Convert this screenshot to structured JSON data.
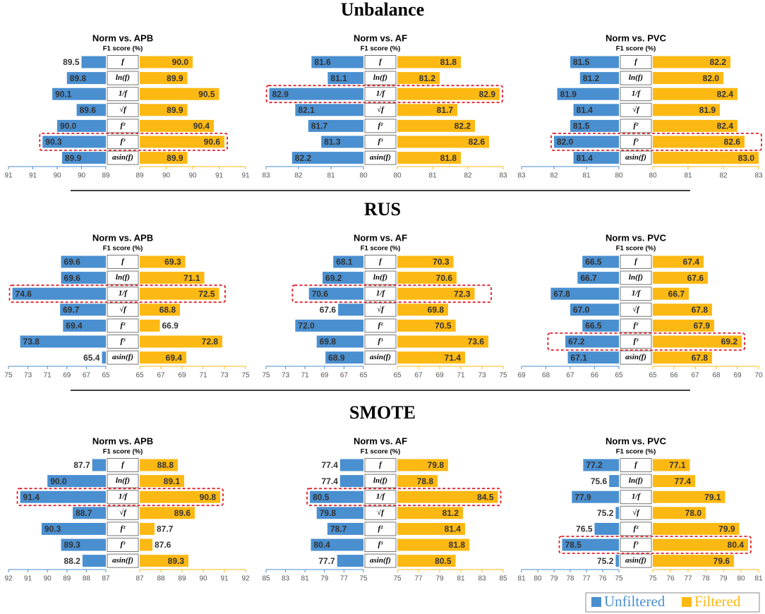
{
  "section_titles": [
    "Unbalance",
    "RUS",
    "SMOTE"
  ],
  "chart_data": [
    {
      "type": "butterfly",
      "title": "Norm vs. APB",
      "subtitle": "F1 score (%)",
      "categories": [
        "f",
        "ln(f)",
        "1/f",
        "√f",
        "f²",
        "f³",
        "asin(f)"
      ],
      "highlight": [
        5
      ],
      "series": [
        {
          "name": "Unfiltered",
          "color": "#4a8fd0",
          "values": [
            89.5,
            89.8,
            90.1,
            89.6,
            90.0,
            90.3,
            89.9
          ],
          "value_labels": [
            "89.5",
            "89.8",
            "90.1",
            "89.6",
            "90.0",
            "90.3",
            "89.9"
          ],
          "xlim": [
            89,
            91
          ],
          "xticks": [
            89,
            {
              "value": 89.5,
              "label": "90"
            },
            90,
            {
              "value": 90.5,
              "label": "91"
            },
            91
          ]
        },
        {
          "name": "Filtered",
          "color": "#fdb913",
          "values": [
            90.0,
            89.9,
            90.5,
            89.9,
            90.4,
            90.6,
            89.9
          ],
          "value_labels": [
            "90.0",
            "89.9",
            "90.5",
            "89.9",
            "90.4",
            "90.6",
            "89.9"
          ],
          "xlim": [
            89,
            91
          ],
          "xticks": [
            89,
            {
              "value": 89.5,
              "label": "90"
            },
            90,
            {
              "value": 90.5,
              "label": "91"
            },
            91
          ]
        }
      ]
    },
    {
      "type": "butterfly",
      "title": "Norm vs. AF",
      "subtitle": "F1 score (%)",
      "categories": [
        "f",
        "ln(f)",
        "1/f",
        "√f",
        "f²",
        "f³",
        "asin(f)"
      ],
      "highlight": [
        2
      ],
      "series": [
        {
          "name": "Unfiltered",
          "color": "#4a8fd0",
          "values": [
            81.6,
            81.1,
            82.9,
            82.1,
            81.7,
            81.3,
            82.2
          ],
          "value_labels": [
            "81.6",
            "81.1",
            "82.9",
            "82.1",
            "81.7",
            "81.3",
            "82.2"
          ],
          "xlim": [
            80,
            83
          ],
          "xticks": [
            80,
            81,
            82,
            83
          ]
        },
        {
          "name": "Filtered",
          "color": "#fdb913",
          "values": [
            81.8,
            81.2,
            82.9,
            81.7,
            82.2,
            82.6,
            81.8
          ],
          "value_labels": [
            "81.8",
            "81.2",
            "82.9",
            "81.7",
            "82.2",
            "82.6",
            "81.8"
          ],
          "xlim": [
            80,
            83
          ],
          "xticks": [
            80,
            81,
            82,
            83
          ]
        }
      ]
    },
    {
      "type": "butterfly",
      "title": "Norm vs. PVC",
      "subtitle": "F1 score (%)",
      "categories": [
        "f",
        "ln(f)",
        "1/f",
        "√f",
        "f²",
        "f³",
        "asin(f)"
      ],
      "highlight": [
        5
      ],
      "series": [
        {
          "name": "Unfiltered",
          "color": "#4a8fd0",
          "values": [
            81.5,
            81.2,
            81.9,
            81.4,
            81.5,
            82.0,
            81.4
          ],
          "value_labels": [
            "81.5",
            "81.2",
            "81.9",
            "81.4",
            "81.5",
            "82.0",
            "81.4"
          ],
          "xlim": [
            80,
            83
          ],
          "xticks": [
            80,
            81,
            82,
            83
          ]
        },
        {
          "name": "Filtered",
          "color": "#fdb913",
          "values": [
            82.2,
            82.0,
            82.4,
            81.9,
            82.4,
            82.6,
            83.0
          ],
          "value_labels": [
            "82.2",
            "82.0",
            "82.4",
            "81.9",
            "82.4",
            "82.6",
            "83.0"
          ],
          "xlim": [
            80,
            83
          ],
          "xticks": [
            80,
            81,
            82,
            83
          ]
        }
      ]
    },
    {
      "type": "butterfly",
      "title": "Norm vs. APB",
      "subtitle": "F1 score (%)",
      "categories": [
        "f",
        "ln(f)",
        "1/f",
        "√f",
        "f²",
        "f³",
        "asin(f)"
      ],
      "highlight": [
        2
      ],
      "series": [
        {
          "name": "Unfiltered",
          "color": "#4a8fd0",
          "values": [
            69.6,
            69.6,
            74.6,
            69.7,
            69.4,
            73.8,
            65.4
          ],
          "value_labels": [
            "69.6",
            "69.6",
            "74.6",
            "69.7",
            "69.4",
            "73.8",
            "65.4"
          ],
          "xlim": [
            65,
            75
          ],
          "xticks": [
            65,
            67,
            69,
            71,
            73,
            75
          ]
        },
        {
          "name": "Filtered",
          "color": "#fdb913",
          "values": [
            69.3,
            71.1,
            72.5,
            68.8,
            66.9,
            72.8,
            69.4
          ],
          "value_labels": [
            "69.3",
            "71.1",
            "72.5",
            "68.8",
            "66.9",
            "72.8",
            "69.4"
          ],
          "xlim": [
            65,
            75
          ],
          "xticks": [
            65,
            67,
            69,
            71,
            73,
            75
          ]
        }
      ]
    },
    {
      "type": "butterfly",
      "title": "Norm vs. AF",
      "subtitle": "F1 score (%)",
      "categories": [
        "f",
        "ln(f)",
        "1/f",
        "√f",
        "f²",
        "f³",
        "asin(f)"
      ],
      "highlight": [
        2
      ],
      "series": [
        {
          "name": "Unfiltered",
          "color": "#4a8fd0",
          "values": [
            68.1,
            69.2,
            70.6,
            67.6,
            72.0,
            69.8,
            68.9
          ],
          "value_labels": [
            "68.1",
            "69.2",
            "70.6",
            "67.6",
            "72.0",
            "69.8",
            "68.9"
          ],
          "xlim": [
            65,
            75
          ],
          "xticks": [
            65,
            67,
            69,
            71,
            73,
            75
          ]
        },
        {
          "name": "Filtered",
          "color": "#fdb913",
          "values": [
            70.3,
            70.6,
            72.3,
            69.8,
            70.5,
            73.6,
            71.4
          ],
          "value_labels": [
            "70.3",
            "70.6",
            "72.3",
            "69.8",
            "70.5",
            "73.6",
            "71.4"
          ],
          "xlim": [
            65,
            75
          ],
          "xticks": [
            65,
            67,
            69,
            71,
            73,
            75
          ]
        }
      ]
    },
    {
      "type": "butterfly",
      "title": "Norm vs. PVC",
      "subtitle": "F1 score (%)",
      "categories": [
        "f",
        "ln(f)",
        "1/f",
        "√f",
        "f²",
        "f³",
        "asin(f)"
      ],
      "highlight": [
        5
      ],
      "series": [
        {
          "name": "Unfiltered",
          "color": "#4a8fd0",
          "values": [
            66.5,
            66.7,
            67.8,
            67.0,
            66.5,
            67.2,
            67.1
          ],
          "value_labels": [
            "66.5",
            "66.7",
            "67.8",
            "67.0",
            "66.5",
            "67.2",
            "67.1"
          ],
          "xlim": [
            65,
            69
          ],
          "xticks": [
            65,
            66,
            67,
            68,
            69
          ]
        },
        {
          "name": "Filtered",
          "color": "#fdb913",
          "values": [
            67.4,
            67.6,
            66.7,
            67.8,
            67.9,
            69.2,
            67.8
          ],
          "value_labels": [
            "67.4",
            "67.6",
            "66.7",
            "67.8",
            "67.9",
            "69.2",
            "67.8"
          ],
          "xlim": [
            65,
            70
          ],
          "xticks": [
            65,
            66,
            67,
            68,
            69,
            70
          ]
        }
      ]
    },
    {
      "type": "butterfly",
      "title": "Norm vs. APB",
      "subtitle": "F1 score (%)",
      "categories": [
        "f",
        "ln(f)",
        "1/f",
        "√f",
        "f²",
        "f³",
        "asin(f)"
      ],
      "highlight": [
        2
      ],
      "series": [
        {
          "name": "Unfiltered",
          "color": "#4a8fd0",
          "values": [
            87.7,
            90.0,
            91.4,
            88.7,
            90.3,
            89.3,
            88.2
          ],
          "value_labels": [
            "87.7",
            "90.0",
            "91.4",
            "88.7",
            "90.3",
            "89.3",
            "88.2"
          ],
          "xlim": [
            87,
            92
          ],
          "xticks": [
            87,
            88,
            89,
            90,
            91,
            92
          ]
        },
        {
          "name": "Filtered",
          "color": "#fdb913",
          "values": [
            88.8,
            89.1,
            90.8,
            89.6,
            87.7,
            87.6,
            89.3
          ],
          "value_labels": [
            "88.8",
            "89.1",
            "90.8",
            "89.6",
            "87.7",
            "87.6",
            "89.3"
          ],
          "xlim": [
            87,
            92
          ],
          "xticks": [
            87,
            88,
            89,
            90,
            91,
            92
          ]
        }
      ]
    },
    {
      "type": "butterfly",
      "title": "Norm vs. AF",
      "subtitle": "F1 score (%)",
      "categories": [
        "f",
        "ln(f)",
        "1/f",
        "√f",
        "f²",
        "f³",
        "asin(f)"
      ],
      "highlight": [
        2
      ],
      "series": [
        {
          "name": "Unfiltered",
          "color": "#4a8fd0",
          "values": [
            77.4,
            77.4,
            80.5,
            79.8,
            78.7,
            80.4,
            77.7
          ],
          "value_labels": [
            "77.4",
            "77.4",
            "80.5",
            "79.8",
            "78.7",
            "80.4",
            "77.7"
          ],
          "xlim": [
            75,
            85
          ],
          "xticks": [
            75,
            77,
            79,
            81,
            83,
            85
          ]
        },
        {
          "name": "Filtered",
          "color": "#fdb913",
          "values": [
            79.8,
            78.8,
            84.5,
            81.2,
            81.4,
            81.8,
            80.5
          ],
          "value_labels": [
            "79.8",
            "78.8",
            "84.5",
            "81.2",
            "81.4",
            "81.8",
            "80.5"
          ],
          "xlim": [
            75,
            85
          ],
          "xticks": [
            75,
            77,
            79,
            81,
            83,
            85
          ]
        }
      ]
    },
    {
      "type": "butterfly",
      "title": "Norm vs. PVC",
      "subtitle": "F1 score (%)",
      "categories": [
        "f",
        "ln(f)",
        "1/f",
        "√f",
        "f²",
        "f³",
        "asin(f)"
      ],
      "highlight": [
        5
      ],
      "series": [
        {
          "name": "Unfiltered",
          "color": "#4a8fd0",
          "values": [
            77.2,
            75.6,
            77.9,
            75.2,
            76.5,
            78.5,
            75.2
          ],
          "value_labels": [
            "77.2",
            "75.6",
            "77.9",
            "75.2",
            "76.5",
            "78.5",
            "75.2"
          ],
          "xlim": [
            75,
            81
          ],
          "xticks": [
            75,
            76,
            77,
            78,
            79,
            80,
            81
          ]
        },
        {
          "name": "Filtered",
          "color": "#fdb913",
          "values": [
            77.1,
            77.4,
            79.1,
            78.0,
            79.9,
            80.4,
            79.6
          ],
          "value_labels": [
            "77.1",
            "77.4",
            "79.1",
            "78.0",
            "79.9",
            "80.4",
            "79.6"
          ],
          "xlim": [
            75,
            81
          ],
          "xticks": [
            75,
            76,
            77,
            78,
            79,
            80,
            81
          ]
        }
      ]
    }
  ]
}
